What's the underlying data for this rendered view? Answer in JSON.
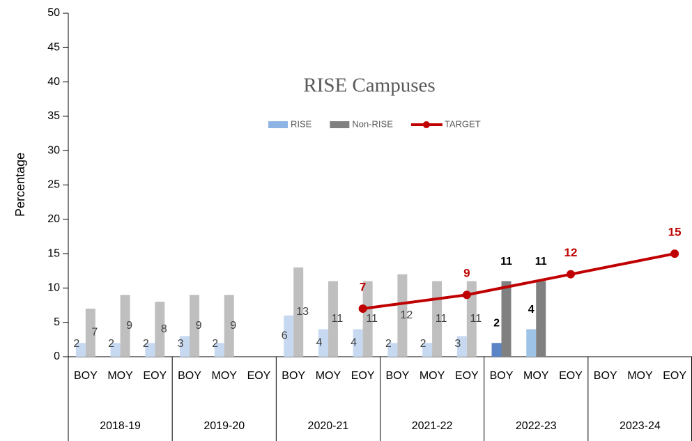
{
  "chart_data": {
    "type": "bar",
    "title": "RISE Campuses",
    "y_label": "Percentage",
    "categories": [
      "BOY",
      "MOY",
      "EOY",
      "BOY",
      "MOY",
      "EOY",
      "BOY",
      "MOY",
      "EOY",
      "BOY",
      "MOY",
      "EOY",
      "BOY",
      "MOY",
      "EOY",
      "BOY",
      "MOY",
      "EOY"
    ],
    "groups": [
      "2018-19",
      "2019-20",
      "2020-21",
      "2021-22",
      "2022-23",
      "2023-24"
    ],
    "ylim": [
      0,
      50
    ],
    "yticks": [
      0,
      5,
      10,
      15,
      20,
      25,
      30,
      35,
      40,
      45,
      50
    ],
    "legend": "top",
    "series": [
      {
        "name": "RISE",
        "color": "#8eb4e3",
        "type": "bar",
        "point_colors": [
          "#c6d9f1",
          "#c6d9f1",
          "#c6d9f1",
          "#c6d9f1",
          "#c6d9f1",
          null,
          "#c6d9f1",
          "#c6d9f1",
          "#c6d9f1",
          "#c6d9f1",
          "#c6d9f1",
          "#c6d9f1",
          "#5b84c7",
          "#9dc3e6",
          null,
          null,
          null,
          null
        ],
        "values": [
          2,
          2,
          2,
          3,
          2,
          null,
          6,
          4,
          4,
          2,
          2,
          3,
          2,
          4,
          null,
          null,
          null,
          null
        ],
        "bold_labels": [
          12,
          13
        ]
      },
      {
        "name": "Non-RISE",
        "color": "#808080",
        "type": "bar",
        "point_colors": [
          "#bfbfbf",
          "#bfbfbf",
          "#bfbfbf",
          "#bfbfbf",
          "#bfbfbf",
          null,
          "#bfbfbf",
          "#bfbfbf",
          "#bfbfbf",
          "#bfbfbf",
          "#bfbfbf",
          "#bfbfbf",
          "#808080",
          "#808080",
          null,
          null,
          null,
          null
        ],
        "values": [
          7,
          9,
          8,
          9,
          9,
          null,
          13,
          11,
          11,
          12,
          11,
          11,
          11,
          11,
          null,
          null,
          null,
          null
        ],
        "bold_labels": [
          12,
          13
        ]
      },
      {
        "name": "TARGET",
        "color": "#c00000",
        "type": "line",
        "connect_gaps": true,
        "values": [
          null,
          null,
          null,
          null,
          null,
          null,
          null,
          null,
          7,
          null,
          null,
          9,
          null,
          null,
          12,
          null,
          null,
          15
        ]
      }
    ]
  }
}
